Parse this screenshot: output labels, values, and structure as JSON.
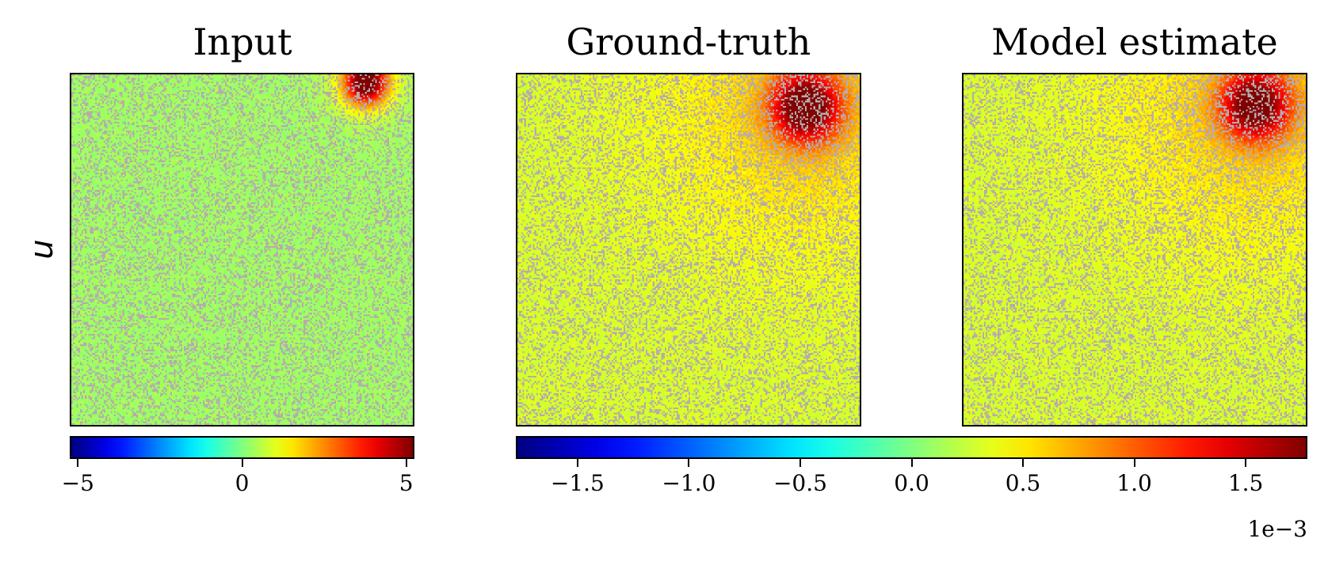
{
  "figure": {
    "row_label": "u",
    "panels": [
      {
        "title": "Input"
      },
      {
        "title": "Ground-truth"
      },
      {
        "title": "Model estimate"
      }
    ]
  },
  "colormap": {
    "name": "jet",
    "masked_color": "#b6acac"
  },
  "chart_data": [
    {
      "type": "heatmap",
      "title": "Input",
      "ylabel": "u",
      "description_values": {
        "background_level": 0.0,
        "peak_value": 5.0,
        "peak_location": "top-right"
      },
      "colorbar": {
        "range": [
          -5.2,
          5.2
        ],
        "ticks": [
          -5,
          0,
          5
        ],
        "tick_labels": [
          "−5",
          "0",
          "5"
        ],
        "offset_text": ""
      }
    },
    {
      "type": "heatmap",
      "title": "Ground-truth",
      "description_values": {
        "background_level": 0.0,
        "peak_value": 1.75,
        "peak_location": "top-right",
        "units_multiplier": "1e-3"
      },
      "colorbar": {
        "range": [
          -1.77,
          1.77
        ],
        "ticks": [
          -1.5,
          -1.0,
          -0.5,
          0.0,
          0.5,
          1.0,
          1.5
        ],
        "tick_labels": [
          "−1.5",
          "−1.0",
          "−0.5",
          "0.0",
          "0.5",
          "1.0",
          "1.5"
        ],
        "offset_text": "1e−3"
      }
    },
    {
      "type": "heatmap",
      "title": "Model estimate",
      "description_values": {
        "background_level": 0.0,
        "peak_value": 1.7,
        "peak_location": "top-right",
        "units_multiplier": "1e-3"
      },
      "shares_colorbar_with": "Ground-truth"
    }
  ]
}
